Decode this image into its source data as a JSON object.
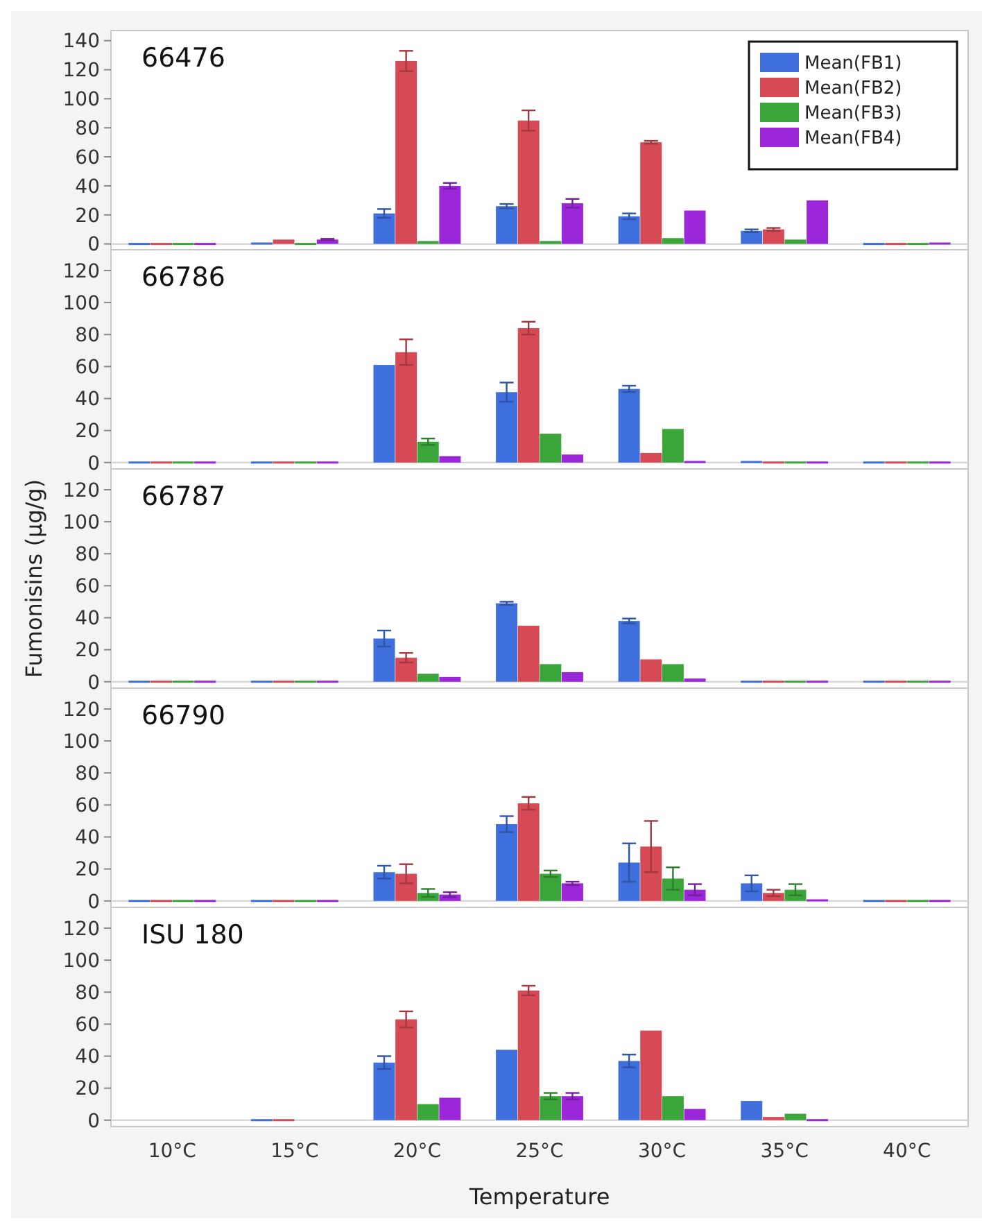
{
  "chart_data": [
    {
      "type": "bar",
      "title": "66476",
      "ylim": [
        -4,
        147
      ],
      "yticks": [
        0,
        20,
        40,
        60,
        80,
        100,
        120,
        140
      ],
      "tick_labels": "y",
      "legend": "top right",
      "series": [
        {
          "name": "Mean(FB1)",
          "color": "#3f6fdc",
          "values": [
            0,
            1,
            21,
            26,
            19,
            9,
            0
          ],
          "errors": [
            null,
            null,
            3,
            1.5,
            2,
            1,
            null
          ]
        },
        {
          "name": "Mean(FB2)",
          "color": "#d64a55",
          "values": [
            0,
            3,
            126,
            85,
            70,
            10,
            0
          ],
          "errors": [
            null,
            null,
            7,
            7,
            1,
            1,
            null
          ]
        },
        {
          "name": "Mean(FB3)",
          "color": "#3aa63a",
          "values": [
            0,
            0,
            2,
            2,
            4,
            3,
            0
          ],
          "errors": [
            null,
            null,
            null,
            null,
            null,
            null,
            null
          ]
        },
        {
          "name": "Mean(FB4)",
          "color": "#9b27d8",
          "values": [
            0,
            3,
            40,
            28,
            23,
            30,
            1
          ],
          "errors": [
            null,
            0.5,
            2,
            3,
            null,
            null,
            null
          ]
        }
      ]
    },
    {
      "type": "bar",
      "title": "66786",
      "ylim": [
        -4,
        133
      ],
      "yticks": [
        0,
        20,
        40,
        60,
        80,
        100,
        120
      ],
      "tick_labels": "y",
      "series": [
        {
          "color": "#3f6fdc",
          "values": [
            0,
            0,
            61,
            44,
            46,
            1,
            0
          ],
          "errors": [
            null,
            null,
            null,
            6,
            2,
            null,
            null
          ]
        },
        {
          "color": "#d64a55",
          "values": [
            0,
            0,
            69,
            84,
            6,
            0,
            0
          ],
          "errors": [
            null,
            null,
            8,
            4,
            null,
            null,
            null
          ]
        },
        {
          "color": "#3aa63a",
          "values": [
            0,
            0,
            13,
            18,
            21,
            0,
            0
          ],
          "errors": [
            null,
            null,
            2,
            null,
            null,
            null,
            null
          ]
        },
        {
          "color": "#9b27d8",
          "values": [
            0,
            0,
            4,
            5,
            1,
            0,
            0
          ],
          "errors": [
            null,
            null,
            null,
            null,
            null,
            null,
            null
          ]
        }
      ]
    },
    {
      "type": "bar",
      "title": "66787",
      "ylabel": "Fumonisins (µg/g)",
      "ylim": [
        -4,
        133
      ],
      "yticks": [
        0,
        20,
        40,
        60,
        80,
        100,
        120
      ],
      "tick_labels": "y",
      "series": [
        {
          "color": "#3f6fdc",
          "values": [
            0,
            0,
            27,
            49,
            38,
            0,
            0
          ],
          "errors": [
            null,
            null,
            5,
            1,
            1.5,
            null,
            null
          ]
        },
        {
          "color": "#d64a55",
          "values": [
            0,
            0,
            15,
            35,
            14,
            0,
            0
          ],
          "errors": [
            null,
            null,
            3,
            null,
            null,
            null,
            null
          ]
        },
        {
          "color": "#3aa63a",
          "values": [
            0,
            0,
            5,
            11,
            11,
            0,
            0
          ],
          "errors": [
            null,
            null,
            null,
            null,
            null,
            null,
            null
          ]
        },
        {
          "color": "#9b27d8",
          "values": [
            0,
            0,
            3,
            6,
            2,
            0,
            0
          ],
          "errors": [
            null,
            null,
            null,
            null,
            null,
            null,
            null
          ]
        }
      ]
    },
    {
      "type": "bar",
      "title": "66790",
      "ylim": [
        -4,
        133
      ],
      "yticks": [
        0,
        20,
        40,
        60,
        80,
        100,
        120
      ],
      "tick_labels": "y",
      "series": [
        {
          "color": "#3f6fdc",
          "values": [
            0,
            0,
            18,
            48,
            24,
            11,
            0
          ],
          "errors": [
            null,
            null,
            4,
            5,
            12,
            5,
            null
          ]
        },
        {
          "color": "#d64a55",
          "values": [
            0,
            0,
            17,
            61,
            34,
            5,
            0
          ],
          "errors": [
            null,
            null,
            6,
            4,
            16,
            2,
            null
          ]
        },
        {
          "color": "#3aa63a",
          "values": [
            0,
            0,
            5,
            17,
            14,
            7,
            0
          ],
          "errors": [
            null,
            null,
            2.5,
            2,
            7,
            3.5,
            null
          ]
        },
        {
          "color": "#9b27d8",
          "values": [
            0,
            0,
            4,
            11,
            7,
            1,
            0
          ],
          "errors": [
            null,
            null,
            1.5,
            1,
            3.5,
            null,
            null
          ]
        }
      ]
    },
    {
      "type": "bar",
      "title": "ISU 180",
      "xlabel": "Temperature",
      "categories": [
        "10°C",
        "15°C",
        "20°C",
        "25°C",
        "30°C",
        "35°C",
        "40°C"
      ],
      "ylim": [
        -4,
        133
      ],
      "yticks": [
        0,
        20,
        40,
        60,
        80,
        100,
        120
      ],
      "series": [
        {
          "color": "#3f6fdc",
          "values": [
            null,
            0,
            36,
            44,
            37,
            12,
            null
          ],
          "errors": [
            null,
            null,
            4,
            null,
            4,
            null,
            null
          ]
        },
        {
          "color": "#d64a55",
          "values": [
            null,
            0,
            63,
            81,
            56,
            2,
            null
          ],
          "errors": [
            null,
            null,
            5,
            3,
            null,
            null,
            null
          ]
        },
        {
          "color": "#3aa63a",
          "values": [
            null,
            null,
            10,
            15,
            15,
            4,
            null
          ],
          "errors": [
            null,
            null,
            null,
            2,
            null,
            null,
            null
          ]
        },
        {
          "color": "#9b27d8",
          "values": [
            null,
            null,
            14,
            15,
            7,
            0,
            null
          ],
          "errors": [
            null,
            null,
            null,
            2,
            null,
            null,
            null
          ]
        }
      ]
    }
  ]
}
